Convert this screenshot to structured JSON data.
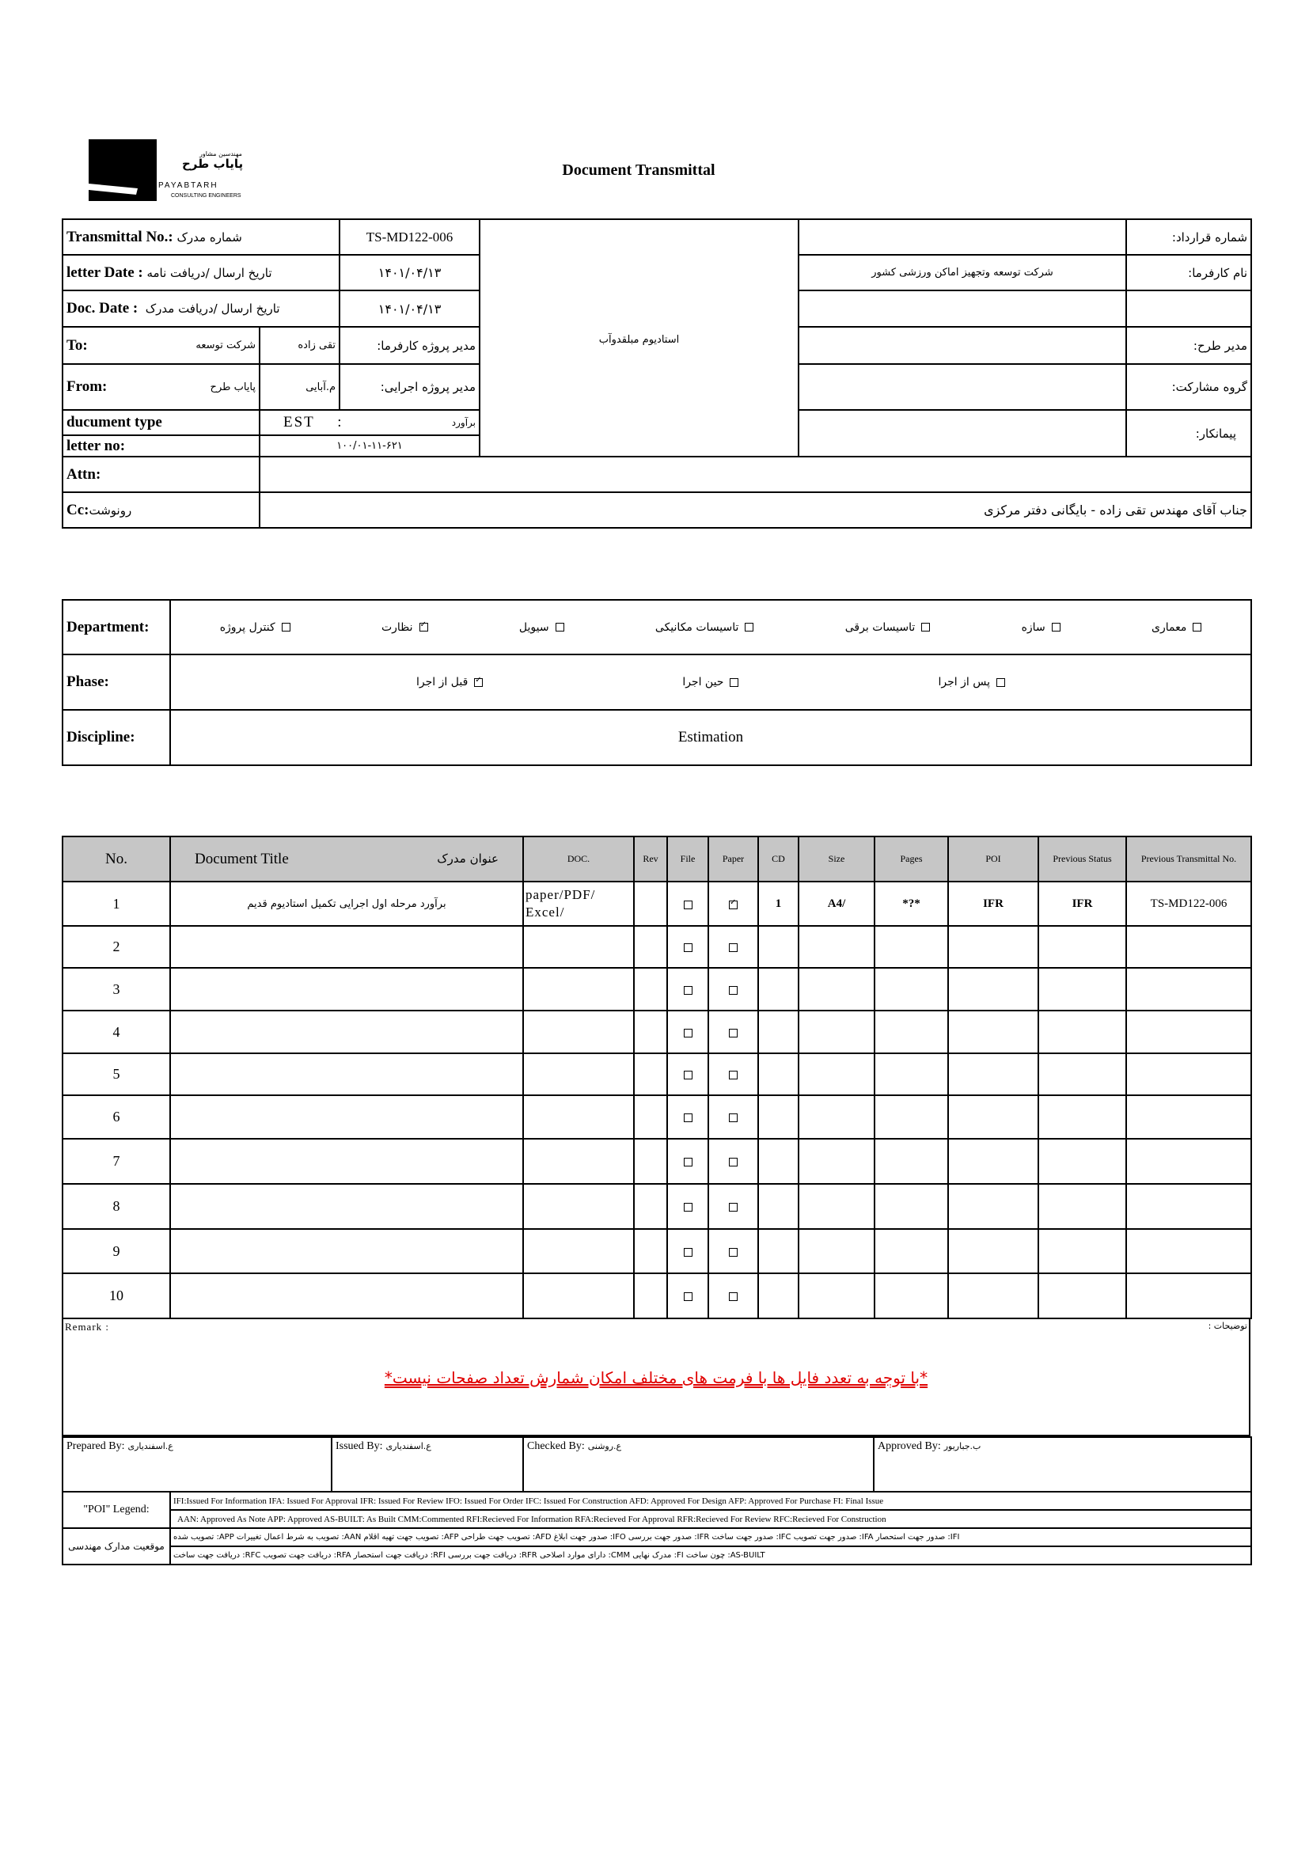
{
  "logo": {
    "fa_small": "مهندسین مشاور",
    "fa_name": "پایاب طرح",
    "en_name": "PAYABTARH",
    "en_sub": "CONSULTING ENGINEERS"
  },
  "title": "Document Transmittal",
  "header": {
    "transmittal_no": {
      "label_en": "Transmittal No.:",
      "label_fa": "شماره مدرک",
      "value": "TS-MD122-006"
    },
    "letter_date": {
      "label_en": "letter Date  :",
      "label_fa": "تاریخ ارسال /دریافت نامه",
      "value": "۱۴۰۱/۰۴/۱۳"
    },
    "doc_date": {
      "label_en": "Doc. Date :",
      "label_fa": "تاریخ ارسال /دریافت مدرک",
      "value": "۱۴۰۱/۰۴/۱۳"
    },
    "to": {
      "label": "To:",
      "company": "شرکت توسعه",
      "person": "تقی زاده",
      "role": "مدیر پروژه کارفرما:"
    },
    "from": {
      "label": "From:",
      "company": "پایاب طرح",
      "person": "م.آبایی",
      "role": "مدیر پروژه اجرایی:"
    },
    "document_type": {
      "label": "ducument type",
      "code": "EST",
      "sep": ":",
      "value_fa": "برآورد"
    },
    "letter_no": {
      "label": "letter no:",
      "value": "۱۰۰/۰۱-۱۱-۶۲۱"
    },
    "project": "استادیوم مبلقدوآب",
    "right": [
      {
        "label": "شماره قرارداد:",
        "value": ""
      },
      {
        "label": "نام کارفرما:",
        "value": "شرکت توسعه وتجهیز اماکن ورزشی کشور"
      },
      {
        "label": "",
        "value": ""
      },
      {
        "label": "مدیر طرح:",
        "value": ""
      },
      {
        "label": "گروه مشارکت:",
        "value": ""
      },
      {
        "label": "پیمانکار:",
        "value": ""
      }
    ],
    "attn": {
      "label": "Attn:",
      "value": ""
    },
    "cc": {
      "label_en": "Cc:",
      "label_fa": "رونوشت",
      "value": "جناب آقای مهندس تقی زاده - بایگانی دفتر مرکزی"
    }
  },
  "department": {
    "label": "Department:",
    "options": [
      {
        "label": "معماری",
        "checked": false
      },
      {
        "label": "سازه",
        "checked": false
      },
      {
        "label": "تاسیسات برقی",
        "checked": false
      },
      {
        "label": "تاسیسات مکانیکی",
        "checked": false
      },
      {
        "label": "سیویل",
        "checked": false
      },
      {
        "label": "نظارت",
        "checked": true
      },
      {
        "label": "کنترل پروژه",
        "checked": false
      }
    ]
  },
  "phase": {
    "label": "Phase:",
    "options": [
      {
        "label": "پس از اجرا",
        "checked": false
      },
      {
        "label": "حین اجرا",
        "checked": false
      },
      {
        "label": "قبل از اجرا",
        "checked": true
      }
    ]
  },
  "discipline": {
    "label": "Discipline:",
    "value": "Estimation"
  },
  "documents": {
    "headers": {
      "no": "No.",
      "title_en": "Document Title",
      "title_fa": "عنوان مدرک",
      "doc": "DOC.",
      "rev": "Rev",
      "file": "File",
      "paper": "Paper",
      "cd": "CD",
      "size": "Size",
      "pages": "Pages",
      "poi": "POI",
      "prev_status": "Previous Status",
      "prev_transmittal": "Previous Transmittal No."
    },
    "rows": [
      {
        "no": "1",
        "title": "برآورد مرحله اول اجرایی تکمیل استادیوم قدیم",
        "doc": "paper/PDF/ Excel/",
        "rev": "",
        "file": false,
        "paper": true,
        "cd": "1",
        "size": "A4/",
        "pages": "*?*",
        "poi": "IFR",
        "prev_status": "IFR",
        "prev_transmittal": "TS-MD122-006"
      },
      {
        "no": "2",
        "file": false,
        "paper": false
      },
      {
        "no": "3",
        "file": false,
        "paper": false
      },
      {
        "no": "4",
        "file": false,
        "paper": false
      },
      {
        "no": "5",
        "file": false,
        "paper": false
      },
      {
        "no": "6",
        "file": false,
        "paper": false
      },
      {
        "no": "7",
        "file": false,
        "paper": false
      },
      {
        "no": "8",
        "file": false,
        "paper": false
      },
      {
        "no": "9",
        "file": false,
        "paper": false
      },
      {
        "no": "10",
        "file": false,
        "paper": false
      }
    ]
  },
  "remark": {
    "label_en": "Remark :",
    "label_fa": "توضیحات :",
    "note": "*با توجه به تعدد فایل ها با فرمت های مختلف امکان شمارش تعداد صفحات نیست*",
    "note_color": "#e00000"
  },
  "signatures": [
    {
      "label": "Prepared By:",
      "name": "ع.اسفندیاری"
    },
    {
      "label": "Issued By:",
      "name": "ع.اسفندیاری"
    },
    {
      "label": "Checked By:",
      "name": "ع.روشنی"
    },
    {
      "label": "Approved By:",
      "name": "ب.جباریور"
    }
  ],
  "legend": {
    "poi_label": "\"POI\" Legend:",
    "status_label": "موقعیت مدارک مهندسی",
    "rows": [
      "IFI:Issued For Information  IFA: Issued For Approval  IFR: Issued For Review   IFO: Issued For Order  IFC: Issued For Construction AFD: Approved For Design AFP: Approved For Purchase  FI: Final Issue",
      "AAN: Approved As Note  APP: Approved  AS-BUILT: As Built CMM:Commented  RFI:Recieved For Information  RFA:Recieved For Approval   RFR:Recieved For Review  RFC:Recieved For Construction",
      "IFI: صدور جهت استحصار   IFA: صدور جهت تصویب   IFC: صدور جهت ساخت   IFR: صدور جهت بررسی   IFO: صدور جهت ابلاغ   AFD: تصویب جهت طراحی   AFP: تصویب جهت تهیه اقلام   AAN: تصویب به شرط اعمال تغییرات   APP: تصویب شده",
      "AS-BUILT: چون ساخت   FI: مدرک نهایی   CMM: دارای موارد اصلاحی   RFR: دریافت جهت بررسی   RFI: دریافت جهت استحصار   RFA: دریافت جهت تصویب   RFC: دریافت جهت ساخت"
    ]
  }
}
